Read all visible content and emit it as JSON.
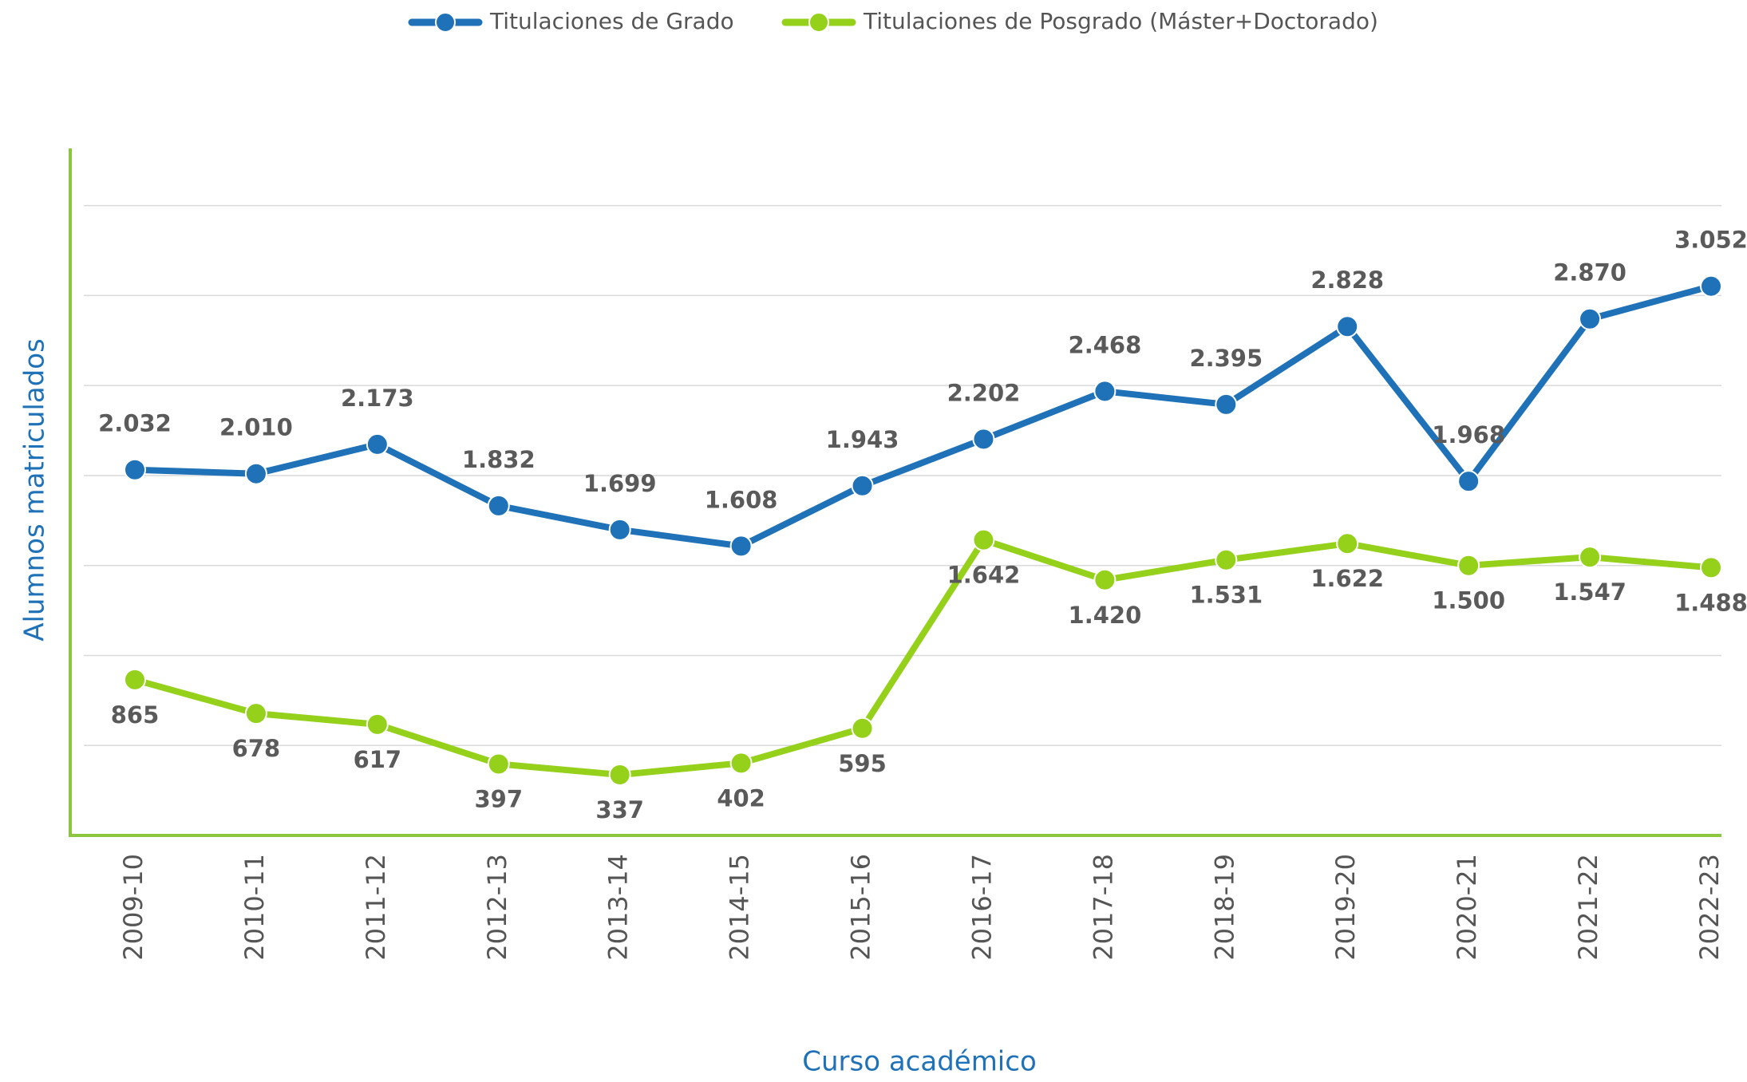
{
  "chart_data": {
    "type": "line",
    "x_label": "Curso académico",
    "y_label": "Alumnos matriculados",
    "categories": [
      "2009-10",
      "2010-11",
      "2011-12",
      "2012-13",
      "2013-14",
      "2014-15",
      "2015-16",
      "2016-17",
      "2017-18",
      "2018-19",
      "2019-20",
      "2020-21",
      "2021-22",
      "2022-23"
    ],
    "series": [
      {
        "name": "Titulaciones de Grado",
        "color": "#1f72b8",
        "values": [
          2032,
          2010,
          2173,
          1832,
          1699,
          1608,
          1943,
          2202,
          2468,
          2395,
          2828,
          1968,
          2870,
          3052
        ],
        "value_labels": [
          "2.032",
          "2.010",
          "2.173",
          "1.832",
          "1.699",
          "1.608",
          "1.943",
          "2.202",
          "2.468",
          "2.395",
          "2.828",
          "1.968",
          "2.870",
          "3.052"
        ]
      },
      {
        "name": "Titulaciones de Posgrado (Máster+Doctorado)",
        "color": "#95d11a",
        "values": [
          865,
          678,
          617,
          397,
          337,
          402,
          595,
          1642,
          1420,
          1531,
          1622,
          1500,
          1547,
          1488
        ],
        "value_labels": [
          "865",
          "678",
          "617",
          "397",
          "337",
          "402",
          "595",
          "1.642",
          "1.420",
          "1.531",
          "1.622",
          "1.500",
          "1.547",
          "1.488"
        ]
      }
    ],
    "ylim": [
      0,
      3800
    ],
    "yticks": [
      0,
      500,
      1000,
      1500,
      2000,
      2500,
      3000,
      3500
    ],
    "grid": true,
    "axis_color": "#8cc63f",
    "legend": "top"
  }
}
